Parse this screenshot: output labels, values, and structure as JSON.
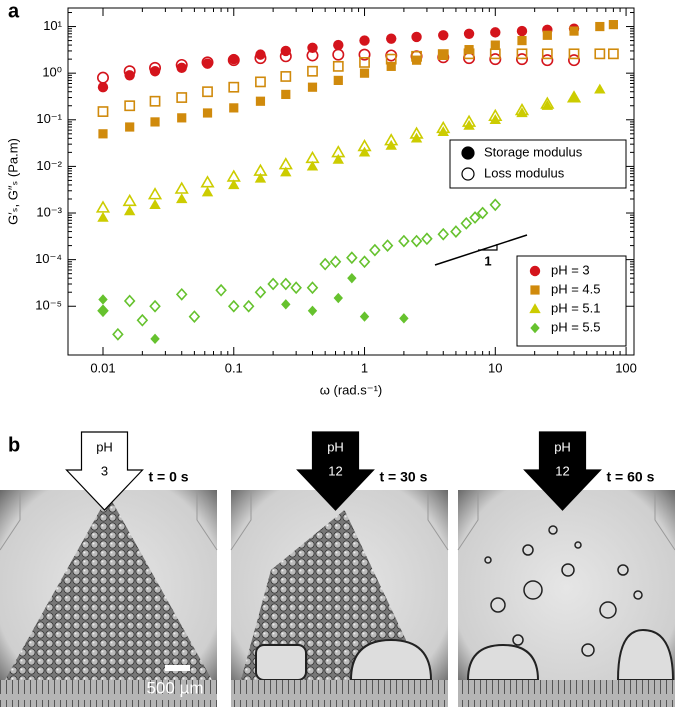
{
  "panel_labels": [
    "a",
    "b"
  ],
  "chart_data": {
    "type": "scatter",
    "log_x": true,
    "log_y": true,
    "xlabel": "ω (rad.s⁻¹)",
    "ylabel": "G′ₛ, G″ₛ (Pa.m)",
    "xlim": [
      0.0054,
      115
    ],
    "ylim": [
      9e-07,
      25
    ],
    "xticks": [
      0.01,
      0.1,
      1,
      10,
      100
    ],
    "yticks": [
      {
        "value": 1e-05,
        "label": "10⁻⁵"
      },
      {
        "value": 0.0001,
        "label": "10⁻⁴"
      },
      {
        "value": 0.001,
        "label": "10⁻³"
      },
      {
        "value": 0.01,
        "label": "10⁻²"
      },
      {
        "value": 0.1,
        "label": "10⁻¹"
      },
      {
        "value": 1,
        "label": "10⁰"
      },
      {
        "value": 10,
        "label": "10¹"
      }
    ],
    "fill_legend": [
      {
        "name": "Storage modulus",
        "fill": "filled"
      },
      {
        "name": "Loss modulus",
        "fill": "open"
      }
    ],
    "fill_legend_location": "right",
    "color_legend_location": "lower right",
    "slope_label": "1",
    "series": [
      {
        "name": "pH = 3",
        "color": "#d4141c",
        "marker": "circle",
        "fill": "open",
        "x": [
          0.01,
          0.016,
          0.025,
          0.04,
          0.063,
          0.1,
          0.16,
          0.25,
          0.4,
          0.63,
          1,
          1.6,
          2.5,
          4,
          6.3,
          10,
          16,
          25,
          40
        ],
        "values": [
          0.8,
          1.1,
          1.3,
          1.5,
          1.7,
          1.9,
          2.1,
          2.3,
          2.4,
          2.5,
          2.5,
          2.4,
          2.3,
          2.2,
          2.1,
          2,
          2,
          1.9,
          1.9
        ]
      },
      {
        "name": "pH = 3",
        "color": "#d4141c",
        "marker": "circle",
        "fill": "filled",
        "x": [
          0.01,
          0.016,
          0.025,
          0.04,
          0.063,
          0.1,
          0.16,
          0.25,
          0.4,
          0.63,
          1,
          1.6,
          2.5,
          4,
          6.3,
          10,
          16,
          25,
          40
        ],
        "values": [
          0.5,
          0.9,
          1.1,
          1.3,
          1.6,
          2,
          2.5,
          3,
          3.5,
          4,
          5,
          5.5,
          6,
          6.5,
          7,
          7.5,
          8,
          8.5,
          9
        ]
      },
      {
        "name": "pH = 4.5",
        "color": "#d08a0c",
        "marker": "square",
        "fill": "open",
        "x": [
          0.01,
          0.016,
          0.025,
          0.04,
          0.063,
          0.1,
          0.16,
          0.25,
          0.4,
          0.63,
          1,
          1.6,
          2.5,
          4,
          6.3,
          10,
          16,
          25,
          40,
          63,
          80
        ],
        "values": [
          0.15,
          0.2,
          0.25,
          0.3,
          0.4,
          0.5,
          0.65,
          0.85,
          1.1,
          1.4,
          1.7,
          2,
          2.3,
          2.5,
          2.6,
          2.6,
          2.6,
          2.6,
          2.6,
          2.6,
          2.6
        ]
      },
      {
        "name": "pH = 4.5",
        "color": "#d08a0c",
        "marker": "square",
        "fill": "filled",
        "x": [
          0.01,
          0.016,
          0.025,
          0.04,
          0.063,
          0.1,
          0.16,
          0.25,
          0.4,
          0.63,
          1,
          1.6,
          2.5,
          4,
          6.3,
          10,
          16,
          25,
          40,
          63,
          80
        ],
        "values": [
          0.05,
          0.07,
          0.09,
          0.11,
          0.14,
          0.18,
          0.25,
          0.35,
          0.5,
          0.7,
          1,
          1.4,
          1.9,
          2.5,
          3.2,
          4,
          5,
          6.5,
          8,
          10,
          11
        ]
      },
      {
        "name": "pH = 5.1",
        "color": "#cccc00",
        "marker": "triangle",
        "fill": "open",
        "x": [
          0.01,
          0.016,
          0.025,
          0.04,
          0.063,
          0.1,
          0.16,
          0.25,
          0.4,
          0.63,
          1,
          1.6,
          2.5,
          4,
          6.3,
          10,
          16,
          25,
          40
        ],
        "values": [
          0.0013,
          0.0018,
          0.0025,
          0.0033,
          0.0045,
          0.006,
          0.008,
          0.011,
          0.015,
          0.02,
          0.027,
          0.036,
          0.05,
          0.066,
          0.09,
          0.12,
          0.16,
          0.22,
          0.3
        ]
      },
      {
        "name": "pH = 5.1",
        "color": "#cccc00",
        "marker": "triangle",
        "fill": "filled",
        "x": [
          0.01,
          0.016,
          0.025,
          0.04,
          0.063,
          0.1,
          0.16,
          0.25,
          0.4,
          0.63,
          1,
          1.6,
          2.5,
          4,
          6.3,
          10,
          16,
          25,
          40,
          63
        ],
        "values": [
          0.0008,
          0.0011,
          0.0015,
          0.002,
          0.0028,
          0.004,
          0.0055,
          0.0075,
          0.01,
          0.014,
          0.02,
          0.028,
          0.04,
          0.055,
          0.075,
          0.1,
          0.14,
          0.2,
          0.3,
          0.45
        ]
      },
      {
        "name": "pH = 5.5",
        "color": "#66c22e",
        "marker": "diamond",
        "fill": "open",
        "x": [
          0.01,
          0.013,
          0.016,
          0.02,
          0.025,
          0.04,
          0.05,
          0.08,
          0.1,
          0.13,
          0.16,
          0.2,
          0.25,
          0.3,
          0.4,
          0.5,
          0.6,
          0.8,
          1,
          1.2,
          1.5,
          2,
          2.5,
          3,
          4,
          5,
          6,
          7,
          8,
          10
        ],
        "values": [
          8e-06,
          2.5e-06,
          1.3e-05,
          5e-06,
          1e-05,
          1.8e-05,
          6e-06,
          2.2e-05,
          1e-05,
          1e-05,
          2e-05,
          3e-05,
          3e-05,
          2.5e-05,
          2.5e-05,
          8e-05,
          9e-05,
          0.00011,
          9e-05,
          0.00016,
          0.0002,
          0.00025,
          0.00025,
          0.00028,
          0.00035,
          0.0004,
          0.0006,
          0.0008,
          0.001,
          0.0015
        ]
      },
      {
        "name": "pH = 5.5",
        "color": "#66c22e",
        "marker": "diamond",
        "fill": "filled",
        "x": [
          0.01,
          0.01,
          0.025,
          0.25,
          0.4,
          0.63,
          0.8,
          1,
          2
        ],
        "values": [
          1.4e-05,
          8e-06,
          2e-06,
          1.1e-05,
          8e-06,
          1.5e-05,
          4e-05,
          6e-06,
          5.5e-06
        ]
      }
    ]
  },
  "panel_b": {
    "frames": [
      {
        "ph_label": "pH",
        "ph": "3",
        "time": "t = 0 s"
      },
      {
        "ph_label": "pH",
        "ph": "12",
        "time": "t = 30 s"
      },
      {
        "ph_label": "pH",
        "ph": "12",
        "time": "t = 60 s"
      }
    ],
    "scale_bar": "500 µm"
  }
}
